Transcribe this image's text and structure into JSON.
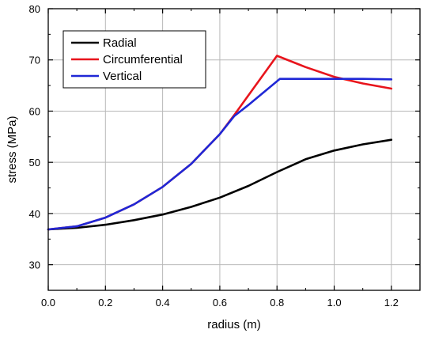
{
  "chart_data": {
    "type": "line",
    "title": "",
    "xlabel": "radius (m)",
    "ylabel": "stress (MPa)",
    "xlim": [
      0.0,
      1.3
    ],
    "ylim": [
      25,
      80
    ],
    "xticks": [
      0.0,
      0.2,
      0.4,
      0.6,
      0.8,
      1.0,
      1.2
    ],
    "xtick_labels": [
      "0.0",
      "0.2",
      "0.4",
      "0.6",
      "0.8",
      "1.0",
      "1.2"
    ],
    "yticks": [
      30,
      40,
      50,
      60,
      70,
      80
    ],
    "ytick_labels": [
      "30",
      "40",
      "50",
      "60",
      "70",
      "80"
    ],
    "grid": true,
    "legend_position": "top-left",
    "series": [
      {
        "name": "Radial",
        "color": "#000000",
        "x": [
          0.0,
          0.1,
          0.2,
          0.3,
          0.4,
          0.5,
          0.6,
          0.7,
          0.8,
          0.9,
          1.0,
          1.1,
          1.2
        ],
        "y": [
          36.9,
          37.2,
          37.8,
          38.7,
          39.8,
          41.3,
          43.1,
          45.4,
          48.1,
          50.6,
          52.3,
          53.5,
          54.4
        ]
      },
      {
        "name": "Circumferential",
        "color": "#e8141c",
        "x": [
          0.0,
          0.1,
          0.2,
          0.3,
          0.4,
          0.5,
          0.6,
          0.65,
          0.8,
          0.9,
          1.0,
          1.1,
          1.2
        ],
        "y": [
          36.9,
          37.5,
          39.2,
          41.8,
          45.2,
          49.7,
          55.5,
          59.2,
          70.8,
          68.6,
          66.7,
          65.4,
          64.4
        ]
      },
      {
        "name": "Vertical",
        "color": "#1f27d6",
        "x": [
          0.0,
          0.1,
          0.2,
          0.3,
          0.4,
          0.5,
          0.6,
          0.65,
          0.7,
          0.81,
          0.9,
          1.0,
          1.1,
          1.2
        ],
        "y": [
          36.9,
          37.5,
          39.2,
          41.8,
          45.2,
          49.7,
          55.5,
          59.0,
          61.2,
          66.3,
          66.3,
          66.3,
          66.3,
          66.2
        ]
      }
    ]
  }
}
